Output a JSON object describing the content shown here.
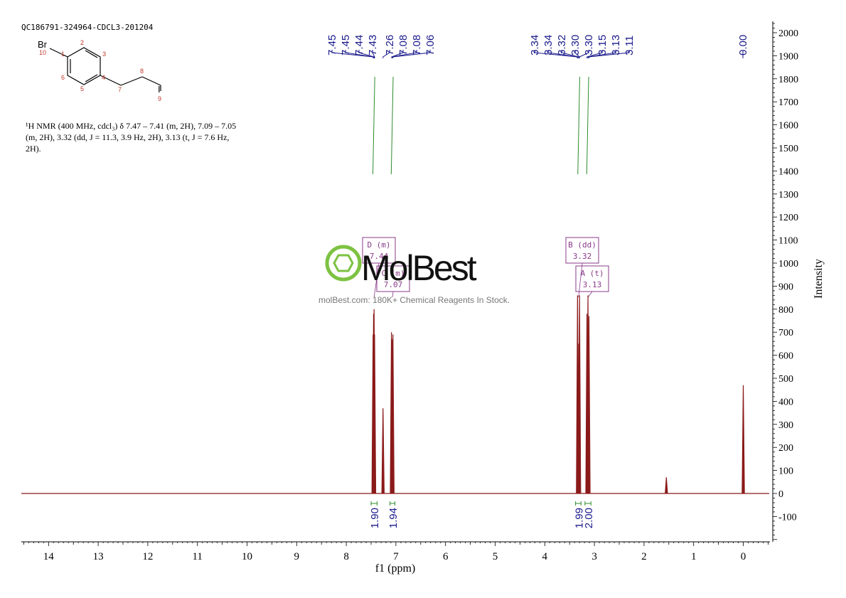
{
  "sample_id": "QC186791-324964-CDCL3-201204",
  "description_lines": [
    "¹H NMR (400 MHz, cdcl₃) δ 7.47 – 7.41 (m, 2H), 7.09 – 7.05",
    "(m, 2H), 3.32 (dd, J = 11.3, 3.9 Hz, 2H), 3.13 (t, J = 7.6 Hz,",
    "2H)."
  ],
  "molecule": {
    "atoms": [
      "Br",
      "I"
    ],
    "numbers": [
      "1",
      "2",
      "3",
      "4",
      "5",
      "6",
      "7",
      "8",
      "9",
      "10"
    ]
  },
  "watermark": {
    "brand": "MolBest",
    "tagline": "molBest.com: 180K+ Chemical Reagents In Stock."
  },
  "colors": {
    "spectrum": "#8b1a1a",
    "integral_curve": "#2e8b2e",
    "label": "#1a1a8c",
    "multiplet_box": "#8a3a8a",
    "logo_green": "#7dc242"
  },
  "chart_data": {
    "type": "line",
    "xlabel": "f1 (ppm)",
    "ylabel": "Intensity",
    "xlim": [
      14.5,
      -0.5
    ],
    "x_reversed": true,
    "ylim": [
      -200,
      2050
    ],
    "x_ticks": [
      "14",
      "13",
      "12",
      "11",
      "10",
      "9",
      "8",
      "7",
      "6",
      "5",
      "4",
      "3",
      "2",
      "1",
      "0"
    ],
    "y_ticks": [
      "2000",
      "1900",
      "1800",
      "1700",
      "1600",
      "1500",
      "1400",
      "1300",
      "1200",
      "1100",
      "1000",
      "900",
      "800",
      "700",
      "600",
      "500",
      "400",
      "300",
      "200",
      "100",
      "0",
      "-100"
    ],
    "peaks": [
      {
        "ppm": 7.46,
        "height": 690
      },
      {
        "ppm": 7.45,
        "height": 780
      },
      {
        "ppm": 7.44,
        "height": 800
      },
      {
        "ppm": 7.43,
        "height": 690
      },
      {
        "ppm": 7.26,
        "height": 370
      },
      {
        "ppm": 7.09,
        "height": 700
      },
      {
        "ppm": 7.08,
        "height": 670
      },
      {
        "ppm": 7.07,
        "height": 660
      },
      {
        "ppm": 7.06,
        "height": 690
      },
      {
        "ppm": 3.34,
        "height": 860
      },
      {
        "ppm": 3.33,
        "height": 650
      },
      {
        "ppm": 3.31,
        "height": 650
      },
      {
        "ppm": 3.3,
        "height": 860
      },
      {
        "ppm": 3.15,
        "height": 780
      },
      {
        "ppm": 3.13,
        "height": 860
      },
      {
        "ppm": 3.11,
        "height": 770
      },
      {
        "ppm": 1.55,
        "height": 70
      },
      {
        "ppm": 0.0,
        "height": 470
      }
    ],
    "peak_groups": [
      {
        "labels": [
          "7.45",
          "7.45",
          "7.44",
          "7.43",
          "7.26",
          "7.08",
          "7.08",
          "7.06"
        ],
        "apex_ppm": [
          7.455,
          7.45,
          7.44,
          7.43,
          7.26,
          7.085,
          7.08,
          7.06
        ]
      },
      {
        "labels": [
          "3.34",
          "3.34",
          "3.32",
          "3.30",
          "3.30",
          "3.15",
          "3.13",
          "3.11"
        ],
        "apex_ppm": [
          3.345,
          3.34,
          3.32,
          3.305,
          3.3,
          3.15,
          3.13,
          3.11
        ]
      },
      {
        "labels": [
          "0.00"
        ],
        "apex_ppm": [
          0.0
        ]
      }
    ],
    "multiplets": [
      {
        "label": "D (m)",
        "value": "7.44",
        "ppm": 7.44
      },
      {
        "label": "C (m)",
        "value": "7.07",
        "ppm": 7.07
      },
      {
        "label": "B (dd)",
        "value": "3.32",
        "ppm": 3.32
      },
      {
        "label": "A (t)",
        "value": "3.13",
        "ppm": 3.13
      }
    ],
    "integrals": [
      {
        "from": 7.5,
        "to": 7.38,
        "value": "1.90"
      },
      {
        "from": 7.12,
        "to": 7.02,
        "value": "1.94"
      },
      {
        "from": 3.38,
        "to": 3.27,
        "value": "1.99"
      },
      {
        "from": 3.19,
        "to": 3.07,
        "value": "2.00"
      }
    ]
  }
}
